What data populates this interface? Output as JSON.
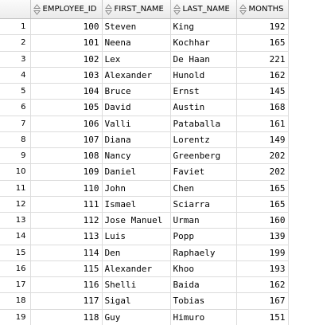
{
  "columns": [
    {
      "label": "EMPLOYEE_ID",
      "icon": "sort-icon"
    },
    {
      "label": "FIRST_NAME",
      "icon": "sort-icon"
    },
    {
      "label": "LAST_NAME",
      "icon": "sort-icon"
    },
    {
      "label": "MONTHS",
      "icon": "sort-icon"
    }
  ],
  "rows": [
    {
      "n": "1",
      "id": "100",
      "first": "Steven",
      "last": "King",
      "months": "192"
    },
    {
      "n": "2",
      "id": "101",
      "first": "Neena",
      "last": "Kochhar",
      "months": "165"
    },
    {
      "n": "3",
      "id": "102",
      "first": "Lex",
      "last": "De Haan",
      "months": "221"
    },
    {
      "n": "4",
      "id": "103",
      "first": "Alexander",
      "last": "Hunold",
      "months": "162"
    },
    {
      "n": "5",
      "id": "104",
      "first": "Bruce",
      "last": "Ernst",
      "months": "145"
    },
    {
      "n": "6",
      "id": "105",
      "first": "David",
      "last": "Austin",
      "months": "168"
    },
    {
      "n": "7",
      "id": "106",
      "first": "Valli",
      "last": "Pataballa",
      "months": "161"
    },
    {
      "n": "8",
      "id": "107",
      "first": "Diana",
      "last": "Lorentz",
      "months": "149"
    },
    {
      "n": "9",
      "id": "108",
      "first": "Nancy",
      "last": "Greenberg",
      "months": "202"
    },
    {
      "n": "10",
      "id": "109",
      "first": "Daniel",
      "last": "Faviet",
      "months": "202"
    },
    {
      "n": "11",
      "id": "110",
      "first": "John",
      "last": "Chen",
      "months": "165"
    },
    {
      "n": "12",
      "id": "111",
      "first": "Ismael",
      "last": "Sciarra",
      "months": "165"
    },
    {
      "n": "13",
      "id": "112",
      "first": "Jose Manuel",
      "last": "Urman",
      "months": "160"
    },
    {
      "n": "14",
      "id": "113",
      "first": "Luis",
      "last": "Popp",
      "months": "139"
    },
    {
      "n": "15",
      "id": "114",
      "first": "Den",
      "last": "Raphaely",
      "months": "199"
    },
    {
      "n": "16",
      "id": "115",
      "first": "Alexander",
      "last": "Khoo",
      "months": "193"
    },
    {
      "n": "17",
      "id": "116",
      "first": "Shelli",
      "last": "Baida",
      "months": "162"
    },
    {
      "n": "18",
      "id": "117",
      "first": "Sigal",
      "last": "Tobias",
      "months": "167"
    },
    {
      "n": "19",
      "id": "118",
      "first": "Guy",
      "last": "Himuro",
      "months": "151"
    }
  ]
}
